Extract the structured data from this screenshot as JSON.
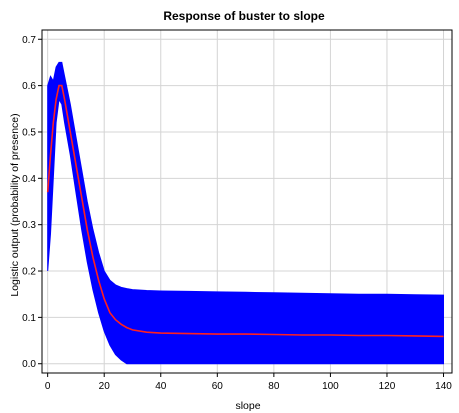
{
  "colors": {
    "band": "#0000ff",
    "mean_line": "#ff2020",
    "grid": "#d4d4d4",
    "frame": "#000000",
    "background": "#ffffff"
  },
  "chart_data": {
    "type": "line",
    "title": "Response of buster to slope",
    "xlabel": "slope",
    "ylabel": "Logistic output (probability of presence)",
    "xlim": [
      -2,
      143
    ],
    "ylim": [
      -0.02,
      0.72
    ],
    "grid": true,
    "x_ticks": [
      0,
      20,
      40,
      60,
      80,
      100,
      120,
      140
    ],
    "y_ticks": [
      0.0,
      0.1,
      0.2,
      0.3,
      0.4,
      0.5,
      0.6,
      0.7
    ],
    "x_tick_labels": [
      "0",
      "20",
      "40",
      "60",
      "80",
      "100",
      "120",
      "140"
    ],
    "y_tick_labels": [
      "0.0",
      "0.1",
      "0.2",
      "0.3",
      "0.4",
      "0.5",
      "0.6",
      "0.7"
    ],
    "series": [
      {
        "role": "mean",
        "x": [
          0,
          1,
          2,
          3,
          4,
          5,
          6,
          8,
          10,
          12,
          14,
          16,
          18,
          20,
          22,
          24,
          26,
          28,
          30,
          35,
          40,
          50,
          60,
          70,
          80,
          90,
          100,
          110,
          120,
          130,
          140
        ],
        "y": [
          0.37,
          0.45,
          0.52,
          0.57,
          0.6,
          0.6,
          0.57,
          0.5,
          0.43,
          0.36,
          0.29,
          0.23,
          0.18,
          0.14,
          0.11,
          0.095,
          0.085,
          0.078,
          0.073,
          0.068,
          0.066,
          0.065,
          0.064,
          0.064,
          0.063,
          0.062,
          0.062,
          0.061,
          0.061,
          0.06,
          0.059
        ]
      },
      {
        "role": "upper",
        "x": [
          0,
          1,
          2,
          3,
          4,
          5,
          6,
          8,
          10,
          12,
          14,
          16,
          18,
          20,
          22,
          24,
          26,
          28,
          30,
          35,
          40,
          50,
          60,
          70,
          80,
          90,
          100,
          110,
          120,
          130,
          140
        ],
        "y": [
          0.6,
          0.62,
          0.61,
          0.64,
          0.65,
          0.65,
          0.62,
          0.56,
          0.49,
          0.42,
          0.35,
          0.29,
          0.24,
          0.2,
          0.18,
          0.17,
          0.165,
          0.162,
          0.16,
          0.158,
          0.157,
          0.156,
          0.155,
          0.154,
          0.153,
          0.152,
          0.151,
          0.15,
          0.15,
          0.149,
          0.148
        ]
      },
      {
        "role": "lower",
        "x": [
          0,
          1,
          2,
          3,
          4,
          5,
          6,
          8,
          10,
          12,
          14,
          16,
          18,
          20,
          22,
          24,
          26,
          28,
          30,
          35,
          40,
          50,
          60,
          70,
          80,
          90,
          100,
          110,
          120,
          130,
          140
        ],
        "y": [
          0.2,
          0.28,
          0.4,
          0.52,
          0.57,
          0.56,
          0.52,
          0.45,
          0.37,
          0.29,
          0.22,
          0.16,
          0.11,
          0.07,
          0.04,
          0.02,
          0.008,
          0.0,
          0.0,
          0.0,
          0.0,
          0.0,
          0.0,
          0.0,
          0.0,
          0.0,
          0.0,
          0.0,
          0.0,
          0.0,
          0.0
        ]
      }
    ]
  }
}
